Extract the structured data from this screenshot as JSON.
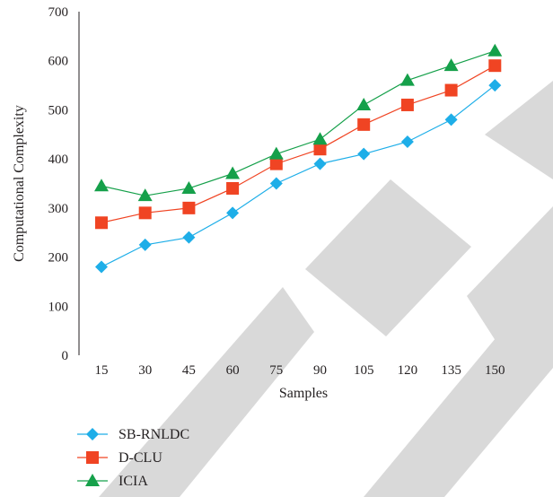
{
  "chart_data": {
    "type": "line",
    "title": "",
    "xlabel": "Samples",
    "ylabel": "Computational Complexity",
    "categories": [
      "15",
      "30",
      "45",
      "60",
      "75",
      "90",
      "105",
      "120",
      "135",
      "150"
    ],
    "ylim": [
      0,
      700
    ],
    "yticks": [
      0,
      100,
      200,
      300,
      400,
      500,
      600,
      700
    ],
    "grid": false,
    "legend_position": "bottom-left",
    "watermark_color": "#d9d9d9",
    "series": [
      {
        "name": "SB-RNLDC",
        "color": "#1eaee8",
        "marker": "diamond",
        "values": [
          180,
          225,
          240,
          290,
          350,
          390,
          410,
          435,
          480,
          550
        ]
      },
      {
        "name": "D-CLU",
        "color": "#f04423",
        "marker": "square",
        "values": [
          270,
          290,
          300,
          340,
          390,
          420,
          470,
          510,
          540,
          590
        ]
      },
      {
        "name": "ICIA",
        "color": "#15a04a",
        "marker": "triangle",
        "values": [
          345,
          325,
          340,
          370,
          410,
          440,
          510,
          560,
          590,
          620
        ]
      }
    ]
  }
}
